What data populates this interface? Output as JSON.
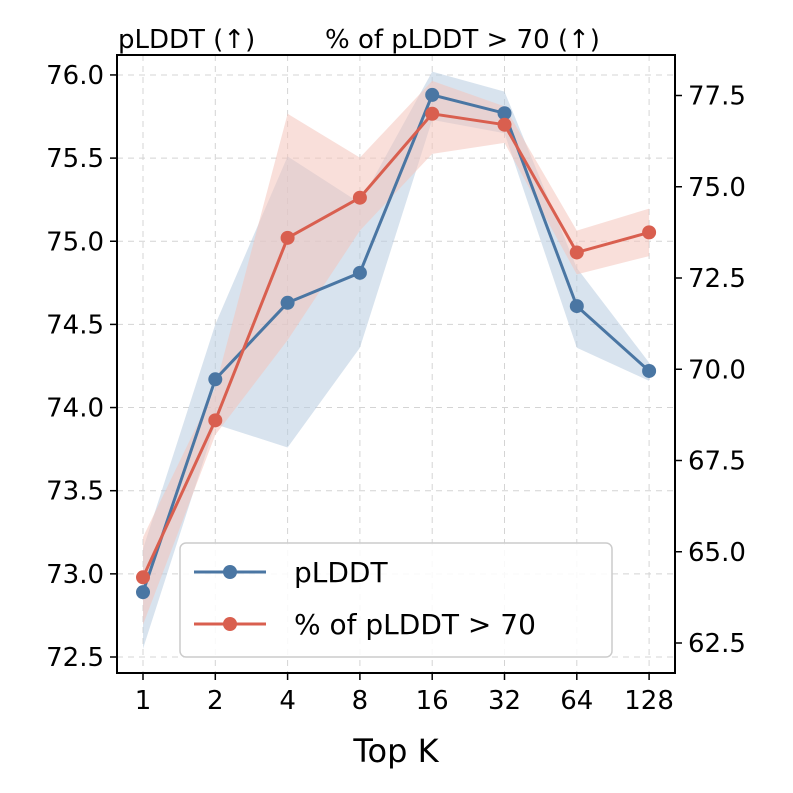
{
  "chart_data": {
    "type": "line",
    "title_left": "pLDDT (↑)",
    "title_right": "% of pLDDT > 70 (↑)",
    "xlabel": "Top K",
    "categories": [
      "1",
      "2",
      "4",
      "8",
      "16",
      "32",
      "64",
      "128"
    ],
    "y_left": {
      "lim": [
        72.4,
        76.15
      ],
      "ticks": [
        "72.5",
        "73.0",
        "73.5",
        "74.0",
        "74.5",
        "75.0",
        "75.5",
        "76.0"
      ]
    },
    "y_right": {
      "lim": [
        61.6,
        78.4
      ],
      "ticks": [
        "62.5",
        "65.0",
        "67.5",
        "70.0",
        "72.5",
        "75.0",
        "77.5"
      ]
    },
    "grid": true,
    "legend_position": "lower-right",
    "series": [
      {
        "name": "pLDDT",
        "axis": "left",
        "color": "#4a76a3",
        "band_color": "#b8cce0",
        "values": [
          72.89,
          74.17,
          74.63,
          74.81,
          75.88,
          75.77,
          74.61,
          74.22
        ],
        "lower": [
          72.55,
          73.9,
          73.76,
          74.36,
          75.73,
          75.65,
          74.36,
          74.16
        ],
        "upper": [
          73.15,
          74.5,
          75.51,
          75.23,
          76.02,
          75.9,
          74.84,
          74.27
        ]
      },
      {
        "name": "% of pLDDT > 70",
        "axis": "right",
        "color": "#d95f4f",
        "band_color": "#f4c4bc",
        "values": [
          64.3,
          68.6,
          73.6,
          74.7,
          77.0,
          76.7,
          73.2,
          73.75
        ],
        "lower": [
          63.0,
          68.2,
          70.8,
          73.8,
          75.9,
          76.2,
          72.6,
          73.1
        ],
        "upper": [
          65.4,
          69.5,
          77.0,
          75.8,
          77.9,
          77.2,
          73.8,
          74.4
        ]
      }
    ]
  }
}
